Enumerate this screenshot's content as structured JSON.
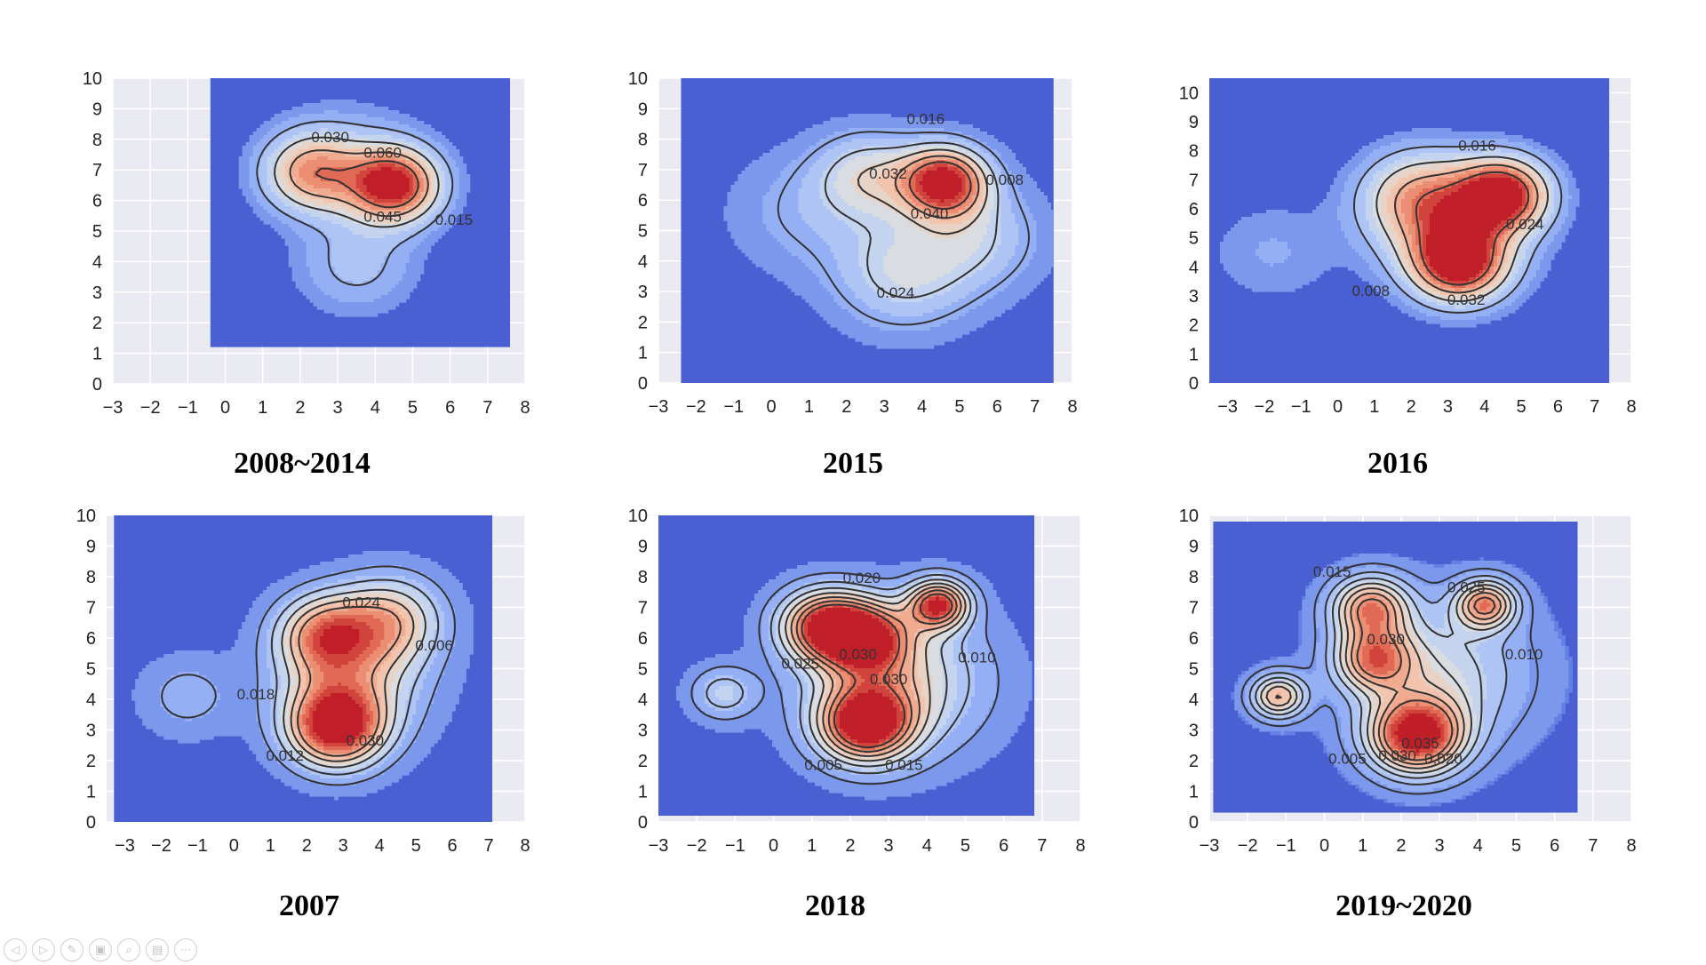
{
  "chart_data": [
    {
      "type": "heatmap",
      "subtype": "kde-contour",
      "caption": "2008~2014",
      "xlim": [
        -3,
        8
      ],
      "ylim": [
        0,
        10
      ],
      "x_ticks": [
        "−3",
        "−2",
        "−1",
        "0",
        "1",
        "2",
        "3",
        "4",
        "5",
        "6",
        "7",
        "8"
      ],
      "y_ticks": [
        "0",
        "1",
        "2",
        "3",
        "4",
        "5",
        "6",
        "7",
        "8",
        "9",
        "10"
      ],
      "field_extent": {
        "x": [
          -0.4,
          7.6
        ],
        "y": [
          1.2,
          10.0
        ]
      },
      "hotspots": [
        {
          "x": 4.5,
          "y": 6.5,
          "peak": 0.075,
          "spread": 0.85
        },
        {
          "x": 2.3,
          "y": 6.9,
          "peak": 0.048,
          "spread": 0.9
        },
        {
          "x": 3.5,
          "y": 3.9,
          "peak": 0.018,
          "spread": 1.1
        },
        {
          "x": 3.3,
          "y": 7.4,
          "peak": 0.012,
          "spread": 1.3
        }
      ],
      "contour_levels": [
        0.015,
        0.03,
        0.045,
        0.06
      ],
      "contour_labels": [
        {
          "text": "0.030",
          "x": 2.8,
          "y": 7.9
        },
        {
          "text": "0.060",
          "x": 4.2,
          "y": 7.4
        },
        {
          "text": "0.045",
          "x": 4.2,
          "y": 5.3
        },
        {
          "text": "0.015",
          "x": 6.1,
          "y": 5.2
        }
      ]
    },
    {
      "type": "heatmap",
      "subtype": "kde-contour",
      "caption": "2015",
      "xlim": [
        -3,
        8
      ],
      "ylim": [
        0,
        10
      ],
      "x_ticks": [
        "−3",
        "−2",
        "−1",
        "0",
        "1",
        "2",
        "3",
        "4",
        "5",
        "6",
        "7",
        "8"
      ],
      "y_ticks": [
        "0",
        "1",
        "2",
        "3",
        "4",
        "5",
        "6",
        "7",
        "8",
        "9",
        "10"
      ],
      "field_extent": {
        "x": [
          -2.4,
          7.5
        ],
        "y": [
          -0.6,
          10.5
        ]
      },
      "hotspots": [
        {
          "x": 4.6,
          "y": 6.6,
          "peak": 0.05,
          "spread": 0.8
        },
        {
          "x": 2.6,
          "y": 6.8,
          "peak": 0.02,
          "spread": 1.0
        },
        {
          "x": 3.5,
          "y": 3.6,
          "peak": 0.018,
          "spread": 1.3
        },
        {
          "x": 5.5,
          "y": 4.8,
          "peak": 0.014,
          "spread": 1.2
        },
        {
          "x": 0.8,
          "y": 5.6,
          "peak": 0.008,
          "spread": 1.4
        }
      ],
      "contour_levels": [
        0.008,
        0.016,
        0.024,
        0.032,
        0.04
      ],
      "contour_labels": [
        {
          "text": "0.016",
          "x": 4.1,
          "y": 8.5
        },
        {
          "text": "0.032",
          "x": 3.1,
          "y": 6.7
        },
        {
          "text": "0.040",
          "x": 4.2,
          "y": 5.4
        },
        {
          "text": "0.008",
          "x": 6.2,
          "y": 6.5
        },
        {
          "text": "0.024",
          "x": 3.3,
          "y": 2.8
        }
      ]
    },
    {
      "type": "heatmap",
      "subtype": "kde-contour",
      "caption": "2016",
      "xlim": [
        -3.5,
        8
      ],
      "ylim": [
        0,
        10.5
      ],
      "x_ticks": [
        "−3",
        "−2",
        "−1",
        "0",
        "1",
        "2",
        "3",
        "4",
        "5",
        "6",
        "7",
        "8"
      ],
      "y_ticks": [
        "0",
        "1",
        "2",
        "3",
        "4",
        "5",
        "6",
        "7",
        "8",
        "9",
        "10"
      ],
      "field_extent": {
        "x": [
          -3.6,
          7.4
        ],
        "y": [
          0.0,
          10.5
        ]
      },
      "hotspots": [
        {
          "x": 4.5,
          "y": 6.5,
          "peak": 0.038,
          "spread": 0.85
        },
        {
          "x": 3.3,
          "y": 4.1,
          "peak": 0.036,
          "spread": 0.9
        },
        {
          "x": 2.2,
          "y": 6.4,
          "peak": 0.02,
          "spread": 1.1
        },
        {
          "x": 3.2,
          "y": 5.4,
          "peak": 0.016,
          "spread": 1.4
        },
        {
          "x": -1.8,
          "y": 4.5,
          "peak": 0.005,
          "spread": 1.3
        }
      ],
      "contour_levels": [
        0.008,
        0.016,
        0.024,
        0.032
      ],
      "contour_labels": [
        {
          "text": "0.016",
          "x": 3.8,
          "y": 8.0
        },
        {
          "text": "0.024",
          "x": 5.1,
          "y": 5.3
        },
        {
          "text": "0.008",
          "x": 0.9,
          "y": 3.0
        },
        {
          "text": "0.032",
          "x": 3.5,
          "y": 2.7
        }
      ]
    },
    {
      "type": "heatmap",
      "subtype": "kde-contour",
      "caption": "2007",
      "xlim": [
        -3.5,
        8
      ],
      "ylim": [
        0,
        10
      ],
      "x_ticks": [
        "−3",
        "−2",
        "−1",
        "0",
        "1",
        "2",
        "3",
        "4",
        "5",
        "6",
        "7",
        "8"
      ],
      "y_ticks": [
        "0",
        "1",
        "2",
        "3",
        "4",
        "5",
        "6",
        "7",
        "8",
        "9",
        "10"
      ],
      "field_extent": {
        "x": [
          -3.3,
          7.1
        ],
        "y": [
          0.0,
          10.0
        ]
      },
      "hotspots": [
        {
          "x": 2.8,
          "y": 3.1,
          "peak": 0.045,
          "spread": 0.9
        },
        {
          "x": 2.5,
          "y": 6.1,
          "peak": 0.03,
          "spread": 0.9
        },
        {
          "x": 4.3,
          "y": 6.6,
          "peak": 0.024,
          "spread": 1.0
        },
        {
          "x": 3.2,
          "y": 4.6,
          "peak": 0.02,
          "spread": 1.4
        },
        {
          "x": -1.3,
          "y": 4.1,
          "peak": 0.008,
          "spread": 0.9
        }
      ],
      "contour_levels": [
        0.006,
        0.012,
        0.018,
        0.024,
        0.03
      ],
      "contour_labels": [
        {
          "text": "0.024",
          "x": 3.5,
          "y": 7.0
        },
        {
          "text": "0.018",
          "x": 0.6,
          "y": 4.0
        },
        {
          "text": "0.006",
          "x": 5.5,
          "y": 5.6
        },
        {
          "text": "0.030",
          "x": 3.6,
          "y": 2.5
        },
        {
          "text": "0.012",
          "x": 1.4,
          "y": 2.0
        }
      ]
    },
    {
      "type": "heatmap",
      "subtype": "kde-contour",
      "caption": "2018",
      "xlim": [
        -3,
        8
      ],
      "ylim": [
        0,
        10
      ],
      "x_ticks": [
        "−3",
        "−2",
        "−1",
        "0",
        "1",
        "2",
        "3",
        "4",
        "5",
        "6",
        "7",
        "8"
      ],
      "y_ticks": [
        "0",
        "1",
        "2",
        "3",
        "4",
        "5",
        "6",
        "7",
        "8",
        "9",
        "10"
      ],
      "field_extent": {
        "x": [
          -3.0,
          6.8
        ],
        "y": [
          0.2,
          10.0
        ]
      },
      "hotspots": [
        {
          "x": 2.4,
          "y": 3.2,
          "peak": 0.042,
          "spread": 0.85
        },
        {
          "x": 1.3,
          "y": 6.4,
          "peak": 0.036,
          "spread": 0.8
        },
        {
          "x": 2.4,
          "y": 6.0,
          "peak": 0.034,
          "spread": 0.8
        },
        {
          "x": 4.3,
          "y": 7.1,
          "peak": 0.038,
          "spread": 0.55
        },
        {
          "x": 3.2,
          "y": 4.6,
          "peak": 0.02,
          "spread": 1.6
        },
        {
          "x": -1.3,
          "y": 4.2,
          "peak": 0.013,
          "spread": 0.6
        }
      ],
      "contour_levels": [
        0.005,
        0.01,
        0.015,
        0.02,
        0.025,
        0.03,
        0.035
      ],
      "contour_labels": [
        {
          "text": "0.020",
          "x": 2.3,
          "y": 7.8
        },
        {
          "text": "0.030",
          "x": 2.2,
          "y": 5.3
        },
        {
          "text": "0.030",
          "x": 3.0,
          "y": 4.5
        },
        {
          "text": "0.025",
          "x": 0.7,
          "y": 5.0
        },
        {
          "text": "0.010",
          "x": 5.3,
          "y": 5.2
        },
        {
          "text": "0.015",
          "x": 3.4,
          "y": 1.7
        },
        {
          "text": "0.005",
          "x": 1.3,
          "y": 1.7
        }
      ]
    },
    {
      "type": "heatmap",
      "subtype": "kde-contour",
      "caption": "2019~2020",
      "xlim": [
        -3,
        8
      ],
      "ylim": [
        0,
        10
      ],
      "x_ticks": [
        "−3",
        "−2",
        "−1",
        "0",
        "1",
        "2",
        "3",
        "4",
        "5",
        "6",
        "7",
        "8"
      ],
      "y_ticks": [
        "0",
        "1",
        "2",
        "3",
        "4",
        "5",
        "6",
        "7",
        "8",
        "9",
        "10"
      ],
      "field_extent": {
        "x": [
          -2.9,
          6.6
        ],
        "y": [
          0.3,
          9.8
        ]
      },
      "hotspots": [
        {
          "x": 2.4,
          "y": 2.8,
          "peak": 0.048,
          "spread": 0.85
        },
        {
          "x": 1.2,
          "y": 7.0,
          "peak": 0.034,
          "spread": 0.7
        },
        {
          "x": 1.3,
          "y": 5.3,
          "peak": 0.032,
          "spread": 0.7
        },
        {
          "x": 4.2,
          "y": 7.1,
          "peak": 0.034,
          "spread": 0.55
        },
        {
          "x": 3.0,
          "y": 4.8,
          "peak": 0.018,
          "spread": 1.6
        },
        {
          "x": -1.2,
          "y": 4.1,
          "peak": 0.03,
          "spread": 0.5
        }
      ],
      "contour_levels": [
        0.005,
        0.01,
        0.015,
        0.02,
        0.025,
        0.03,
        0.035
      ],
      "contour_labels": [
        {
          "text": "0.015",
          "x": 0.2,
          "y": 8.0
        },
        {
          "text": "0.025",
          "x": 3.7,
          "y": 7.5
        },
        {
          "text": "0.030",
          "x": 1.6,
          "y": 5.8
        },
        {
          "text": "0.010",
          "x": 5.2,
          "y": 5.3
        },
        {
          "text": "0.035",
          "x": 2.5,
          "y": 2.4
        },
        {
          "text": "0.030",
          "x": 1.9,
          "y": 2.0
        },
        {
          "text": "0.020",
          "x": 3.1,
          "y": 1.9
        },
        {
          "text": "0.005",
          "x": 0.6,
          "y": 1.9
        }
      ]
    }
  ],
  "colors": {
    "axes_background": "#eaeaf2",
    "gridline": "#ffffff",
    "field_low": "#4a5fd1",
    "field_high": "#c8202a",
    "contour_line": "#333333"
  },
  "controls": [
    {
      "icon": "prev-icon",
      "glyph": "◁"
    },
    {
      "icon": "next-icon",
      "glyph": "▷"
    },
    {
      "icon": "pen-icon",
      "glyph": "✎"
    },
    {
      "icon": "slides-icon",
      "glyph": "▣"
    },
    {
      "icon": "zoom-icon",
      "glyph": "⌕"
    },
    {
      "icon": "subtitle-icon",
      "glyph": "▤"
    },
    {
      "icon": "more-icon",
      "glyph": "⋯"
    }
  ]
}
